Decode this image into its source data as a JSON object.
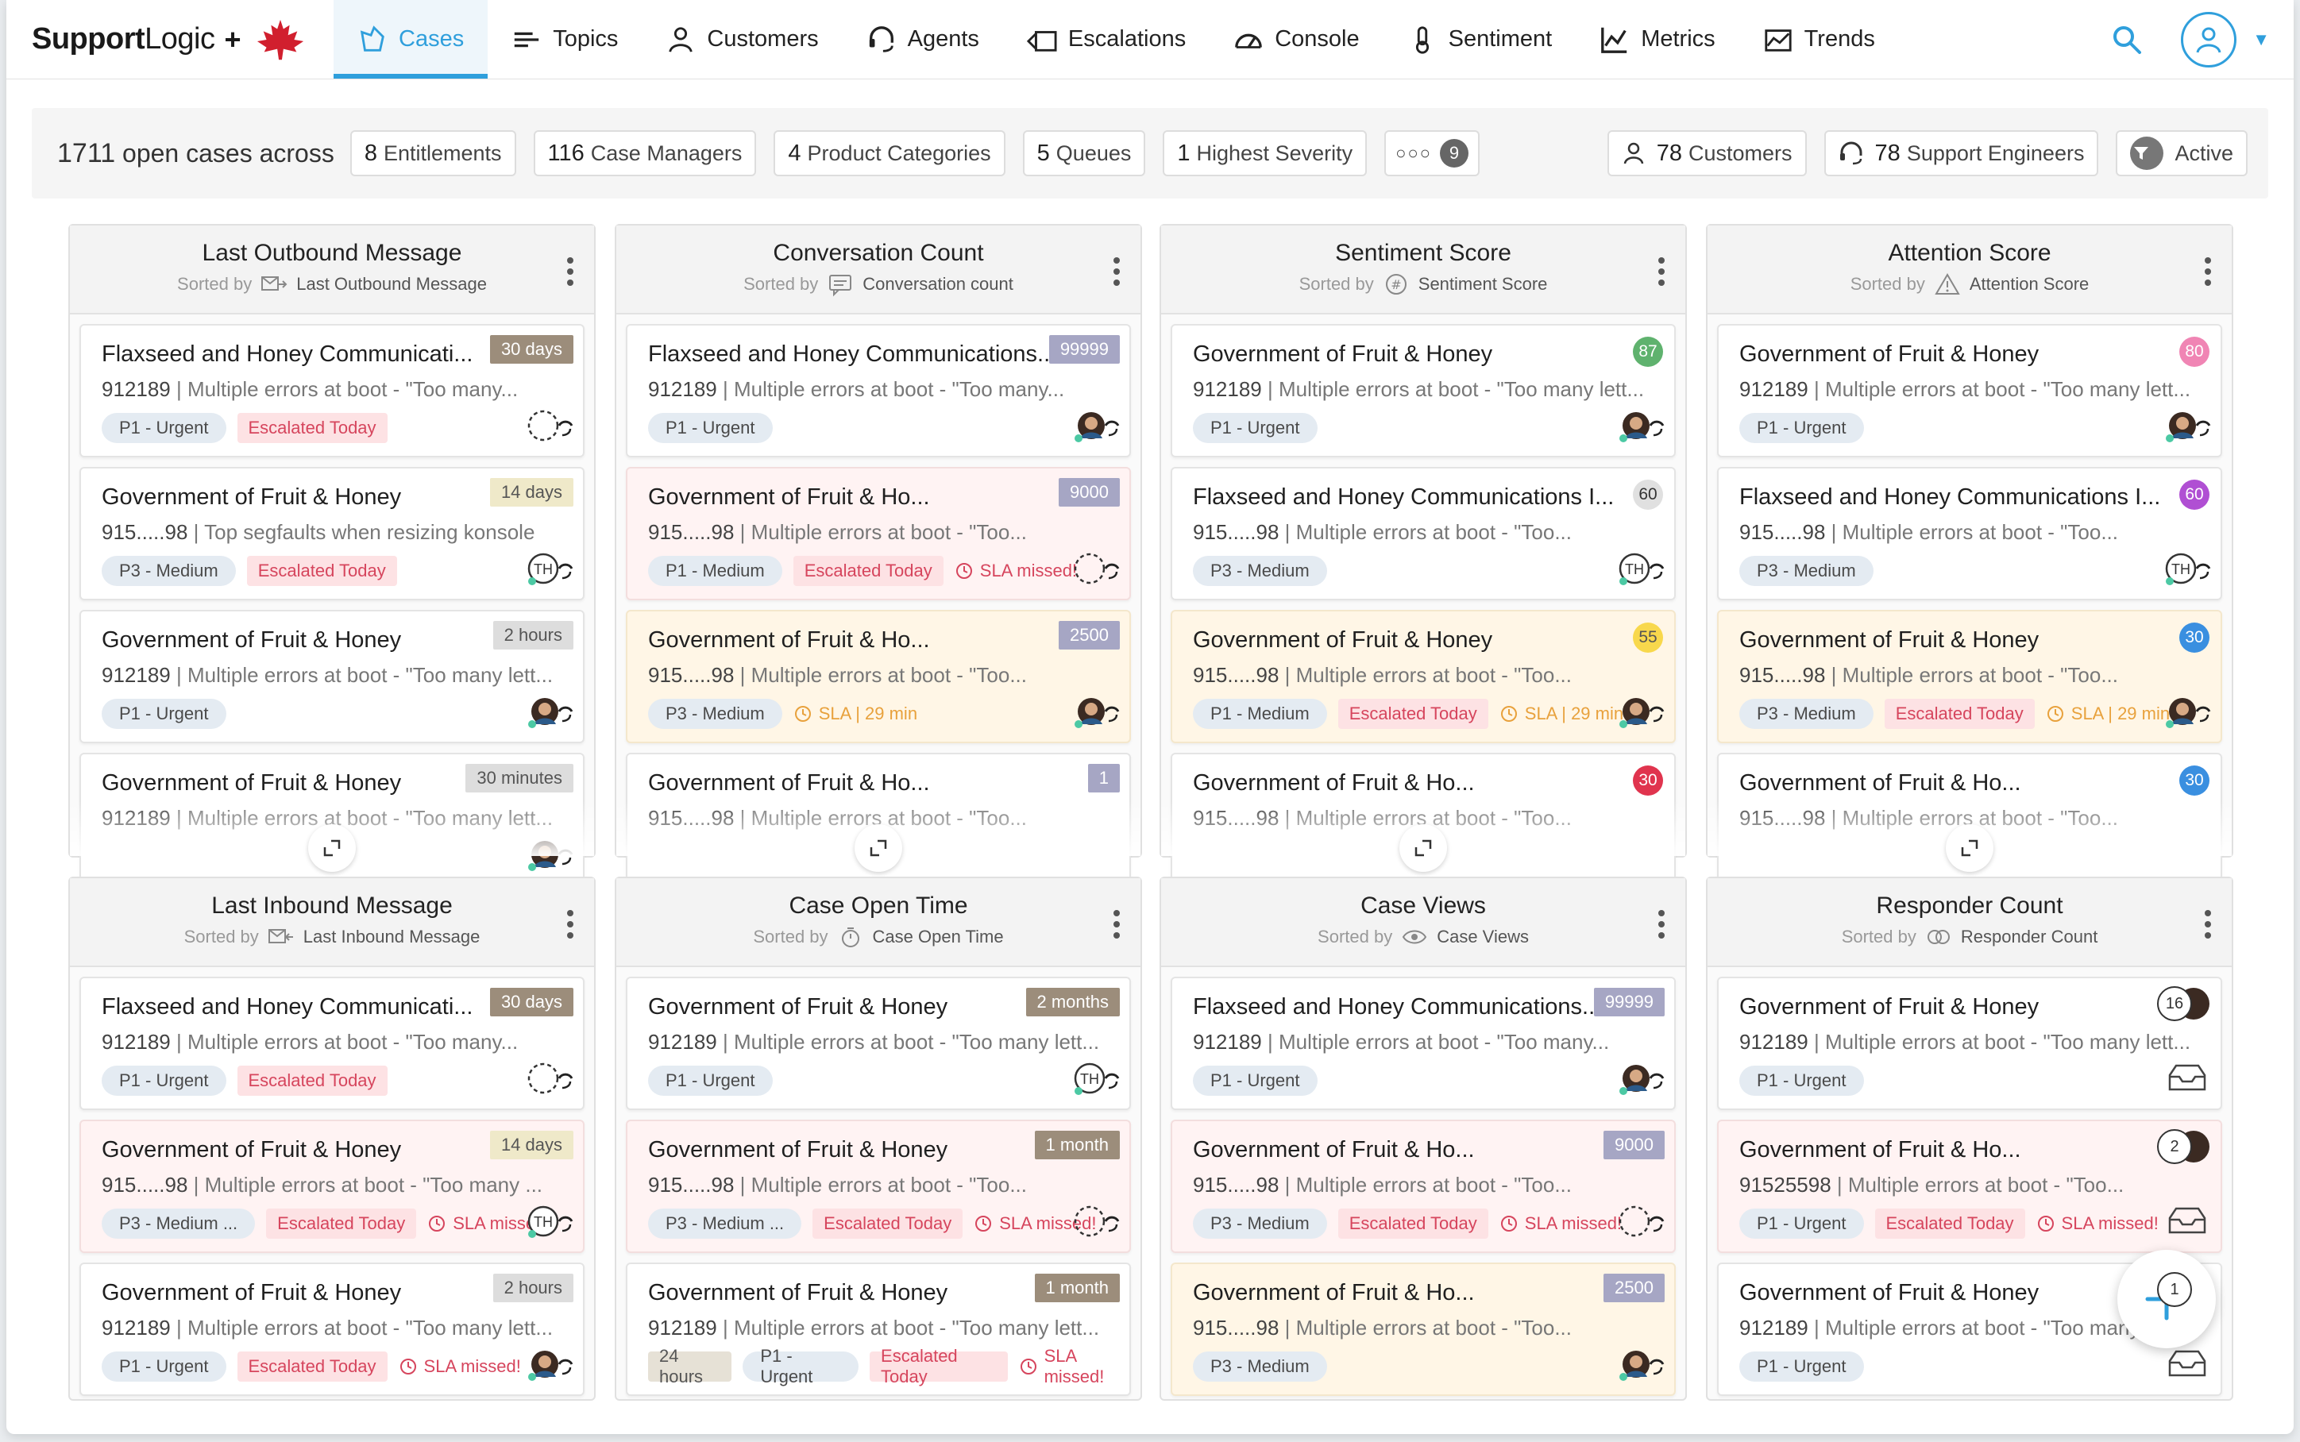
{
  "brand": {
    "name_bold": "Support",
    "name_light": "Logic",
    "plus": "+"
  },
  "nav": [
    {
      "label": "Cases",
      "icon": "cases-icon",
      "active": true
    },
    {
      "label": "Topics",
      "icon": "topics-icon"
    },
    {
      "label": "Customers",
      "icon": "customer-icon"
    },
    {
      "label": "Agents",
      "icon": "headset-icon"
    },
    {
      "label": "Escalations",
      "icon": "escalation-icon"
    },
    {
      "label": "Console",
      "icon": "gauge-icon"
    },
    {
      "label": "Sentiment",
      "icon": "thermometer-icon"
    },
    {
      "label": "Metrics",
      "icon": "line-chart-icon"
    },
    {
      "label": "Trends",
      "icon": "trends-icon"
    }
  ],
  "colors": {
    "accent": "#2f9fdc"
  },
  "summary": {
    "count": "1711",
    "text": "open cases across",
    "filters": [
      {
        "num": "8",
        "label": "Entitlements"
      },
      {
        "num": "116",
        "label": "Case Managers"
      },
      {
        "num": "4",
        "label": "Product Categories"
      },
      {
        "num": "5",
        "label": "Queues"
      },
      {
        "num": "1",
        "label": "Highest Severity"
      }
    ],
    "more_count": "9",
    "customers": {
      "num": "78",
      "label": "Customers"
    },
    "engineers": {
      "num": "78",
      "label": "Support Engineers"
    },
    "active": "Active"
  },
  "sorted_by": "Sorted by",
  "columns": [
    {
      "title": "Last Outbound Message",
      "sort": "Last Outbound Message",
      "sort_icon": "outbound-mail-icon",
      "cards": [
        {
          "title": "Flaxseed and Honey Communicati...",
          "id": "912189",
          "desc": "Multiple errors at boot - \"Too many...",
          "badge": "30 days",
          "btype": "b-tan",
          "tags": [
            [
              "P1 - Urgent",
              "p"
            ],
            [
              "Escalated Today",
              "esc"
            ]
          ],
          "agent": "dashed",
          "bg": ""
        },
        {
          "title": "Government of Fruit & Honey",
          "id": "915.....98",
          "desc": "Top segfaults when resizing konsole",
          "badge": "14 days",
          "btype": "b-khaki",
          "tags": [
            [
              "P3 - Medium",
              "p"
            ],
            [
              "Escalated Today",
              "esc"
            ]
          ],
          "agent": "TH",
          "bg": ""
        },
        {
          "title": "Government of Fruit & Honey",
          "id": "912189",
          "desc": "Multiple errors at boot - \"Too many lett...",
          "badge": "2 hours",
          "btype": "b-light",
          "tags": [
            [
              "P1 - Urgent",
              "p"
            ]
          ],
          "agent": "photo",
          "bg": ""
        },
        {
          "title": "Government of Fruit & Honey",
          "id": "912189",
          "desc": "Multiple errors at boot - \"Too many lett...",
          "badge": "30 minutes",
          "btype": "b-light",
          "tags": [],
          "agent": "photo",
          "bg": ""
        }
      ]
    },
    {
      "title": "Conversation Count",
      "sort": "Conversation count",
      "sort_icon": "chat-icon",
      "cards": [
        {
          "title": "Flaxseed and Honey Communications...",
          "id": "912189",
          "desc": "Multiple errors at boot - \"Too many...",
          "badge": "99999",
          "btype": "b-purple",
          "tags": [
            [
              "P1 - Urgent",
              "p"
            ]
          ],
          "agent": "photo",
          "bg": ""
        },
        {
          "title": "Government of Fruit & Ho...",
          "id": "915.....98",
          "desc": "Multiple errors at boot - \"Too...",
          "badge": "9000",
          "btype": "b-purple",
          "tags": [
            [
              "P1 - Medium",
              "p"
            ],
            [
              "Escalated Today",
              "esc"
            ],
            [
              "SLA missed!",
              "sla"
            ]
          ],
          "agent": "dashed",
          "bg": "red"
        },
        {
          "title": "Government of Fruit & Ho...",
          "id": "915.....98",
          "desc": "Multiple errors at boot - \"Too...",
          "badge": "2500",
          "btype": "b-purple",
          "tags": [
            [
              "P3 - Medium",
              "p"
            ],
            [
              "SLA | 29 min",
              "slaw"
            ]
          ],
          "agent": "photo",
          "bg": "yellow"
        },
        {
          "title": "Government of Fruit & Ho...",
          "id": "915.....98",
          "desc": "Multiple errors at boot - \"Too...",
          "badge": "1",
          "btype": "b-purple",
          "tags": [],
          "agent": "",
          "bg": ""
        }
      ]
    },
    {
      "title": "Sentiment Score",
      "sort": "Sentiment Score",
      "sort_icon": "hash-icon",
      "cards": [
        {
          "title": "Government of Fruit & Honey",
          "id": "912189",
          "desc": "Multiple errors at boot - \"Too many lett...",
          "score": "87",
          "stype": "s-green",
          "tags": [
            [
              "P1 - Urgent",
              "p"
            ]
          ],
          "agent": "photo",
          "bg": ""
        },
        {
          "title": "Flaxseed and Honey Communications I...",
          "id": "915.....98",
          "desc": "Multiple errors at boot - \"Too...",
          "score": "60",
          "stype": "s-gray",
          "tags": [
            [
              "P3 - Medium",
              "p"
            ]
          ],
          "agent": "TH",
          "bg": ""
        },
        {
          "title": "Government of Fruit & Honey",
          "id": "915.....98",
          "desc": "Multiple errors at boot - \"Too...",
          "score": "55",
          "stype": "s-yellow",
          "tags": [
            [
              "P1 - Medium",
              "p"
            ],
            [
              "Escalated Today",
              "esc"
            ],
            [
              "SLA | 29 min",
              "slaw"
            ]
          ],
          "agent": "photo",
          "bg": "yellow"
        },
        {
          "title": "Government of Fruit & Ho...",
          "id": "915.....98",
          "desc": "Multiple errors at boot - \"Too...",
          "score": "30",
          "stype": "s-red",
          "tags": [],
          "agent": "",
          "bg": ""
        }
      ]
    },
    {
      "title": "Attention Score",
      "sort": "Attention Score",
      "sort_icon": "warning-icon",
      "cards": [
        {
          "title": "Government of Fruit & Honey",
          "id": "912189",
          "desc": "Multiple errors at boot - \"Too many lett...",
          "score": "80",
          "stype": "s-pink",
          "tags": [
            [
              "P1 - Urgent",
              "p"
            ]
          ],
          "agent": "photo",
          "bg": ""
        },
        {
          "title": "Flaxseed and Honey Communications I...",
          "id": "915.....98",
          "desc": "Multiple errors at boot - \"Too...",
          "score": "60",
          "stype": "s-purple",
          "tags": [
            [
              "P3 - Medium",
              "p"
            ]
          ],
          "agent": "TH",
          "bg": ""
        },
        {
          "title": "Government of Fruit & Honey",
          "id": "915.....98",
          "desc": "Multiple errors at boot - \"Too...",
          "score": "30",
          "stype": "s-blue",
          "tags": [
            [
              "P3 - Medium",
              "p"
            ],
            [
              "Escalated Today",
              "esc"
            ],
            [
              "SLA | 29 min",
              "slaw"
            ]
          ],
          "agent": "photo",
          "bg": "yellow"
        },
        {
          "title": "Government of Fruit & Ho...",
          "id": "915.....98",
          "desc": "Multiple errors at boot - \"Too...",
          "score": "30",
          "stype": "s-blue",
          "tags": [],
          "agent": "",
          "bg": ""
        }
      ]
    },
    {
      "title": "Last Inbound Message",
      "sort": "Last Inbound Message",
      "sort_icon": "inbound-mail-icon",
      "cards": [
        {
          "title": "Flaxseed and Honey Communicati...",
          "id": "912189",
          "desc": "Multiple errors at boot - \"Too many...",
          "badge": "30 days",
          "btype": "b-tan",
          "tags": [
            [
              "P1 - Urgent",
              "p"
            ],
            [
              "Escalated Today",
              "esc"
            ]
          ],
          "agent": "dashed",
          "bg": ""
        },
        {
          "title": "Government of Fruit & Honey",
          "id": "915.....98",
          "desc": "Multiple errors at boot - \"Too many ...",
          "badge": "14 days",
          "btype": "b-khaki",
          "tags": [
            [
              "P3 - Medium ...",
              "p"
            ],
            [
              "Escalated Today",
              "esc"
            ],
            [
              "SLA missed!",
              "sla"
            ]
          ],
          "agent": "TH",
          "bg": "red"
        },
        {
          "title": "Government of Fruit & Honey",
          "id": "912189",
          "desc": "Multiple errors at boot - \"Too many lett...",
          "badge": "2 hours",
          "btype": "b-light",
          "tags": [
            [
              "P1 - Urgent",
              "p"
            ],
            [
              "Escalated Today",
              "esc"
            ],
            [
              "SLA missed!",
              "sla"
            ]
          ],
          "agent": "photo",
          "bg": ""
        }
      ]
    },
    {
      "title": "Case Open Time",
      "sort": "Case Open Time",
      "sort_icon": "timer-icon",
      "cards": [
        {
          "title": "Government of Fruit & Honey",
          "id": "912189",
          "desc": "Multiple errors at boot - \"Too many lett...",
          "badge": "2 months",
          "btype": "b-tan",
          "tags": [
            [
              "P1 - Urgent",
              "p"
            ]
          ],
          "agent": "TH",
          "bg": ""
        },
        {
          "title": "Government of Fruit & Honey",
          "id": "915.....98",
          "desc": "Multiple errors at boot - \"Too...",
          "badge": "1 month",
          "btype": "b-tan",
          "tags": [
            [
              "P3 - Medium ...",
              "p"
            ],
            [
              "Escalated Today",
              "esc"
            ],
            [
              "SLA missed!",
              "sla"
            ]
          ],
          "agent": "dashed",
          "bg": "red"
        },
        {
          "title": "Government of Fruit & Honey",
          "id": "912189",
          "desc": "Multiple errors at boot - \"Too many lett...",
          "badge": "1 month",
          "btype": "b-tan",
          "tags": [
            [
              "24 hours",
              "gray"
            ],
            [
              "P1 - Urgent",
              "p"
            ],
            [
              "Escalated Today",
              "esc"
            ],
            [
              "SLA missed!",
              "sla"
            ]
          ],
          "agent": "",
          "bg": ""
        }
      ]
    },
    {
      "title": "Case Views",
      "sort": "Case Views",
      "sort_icon": "eye-icon",
      "cards": [
        {
          "title": "Flaxseed and Honey Communications...",
          "id": "912189",
          "desc": "Multiple errors at boot - \"Too many...",
          "badge": "99999",
          "btype": "b-purple",
          "tags": [
            [
              "P1 - Urgent",
              "p"
            ]
          ],
          "agent": "photo",
          "bg": ""
        },
        {
          "title": "Government of Fruit & Ho...",
          "id": "915.....98",
          "desc": "Multiple errors at boot - \"Too...",
          "badge": "9000",
          "btype": "b-purple",
          "tags": [
            [
              "P3 - Medium",
              "p"
            ],
            [
              "Escalated Today",
              "esc"
            ],
            [
              "SLA missed!",
              "sla"
            ]
          ],
          "agent": "dashed",
          "bg": "red"
        },
        {
          "title": "Government of Fruit & Ho...",
          "id": "915.....98",
          "desc": "Multiple errors at boot - \"Too...",
          "badge": "2500",
          "btype": "b-purple",
          "tags": [
            [
              "P3 - Medium",
              "p"
            ]
          ],
          "agent": "photo",
          "bg": "yellow"
        }
      ]
    },
    {
      "title": "Responder Count",
      "sort": "Responder Count",
      "sort_icon": "responders-icon",
      "cards": [
        {
          "title": "Government of Fruit & Honey",
          "id": "912189",
          "desc": "Multiple errors at boot - \"Too many lett...",
          "resp": "16",
          "tags": [
            [
              "P1 - Urgent",
              "p"
            ]
          ],
          "agent": "inbox",
          "bg": ""
        },
        {
          "title": "Government of Fruit & Ho...",
          "id": "91525598",
          "desc": "Multiple errors at boot - \"Too...",
          "resp": "2",
          "tags": [
            [
              "P1 - Urgent",
              "p"
            ],
            [
              "Escalated Today",
              "esc"
            ],
            [
              "SLA missed!",
              "sla"
            ]
          ],
          "agent": "inbox",
          "bg": "red"
        },
        {
          "title": "Government of Fruit & Honey",
          "id": "912189",
          "desc": "Multiple errors at boot - \"Too many lett...",
          "resp": "1",
          "tags": [
            [
              "P1 - Urgent",
              "p"
            ]
          ],
          "agent": "inbox",
          "bg": ""
        }
      ]
    }
  ],
  "fab": {
    "icon": "plus-icon"
  }
}
